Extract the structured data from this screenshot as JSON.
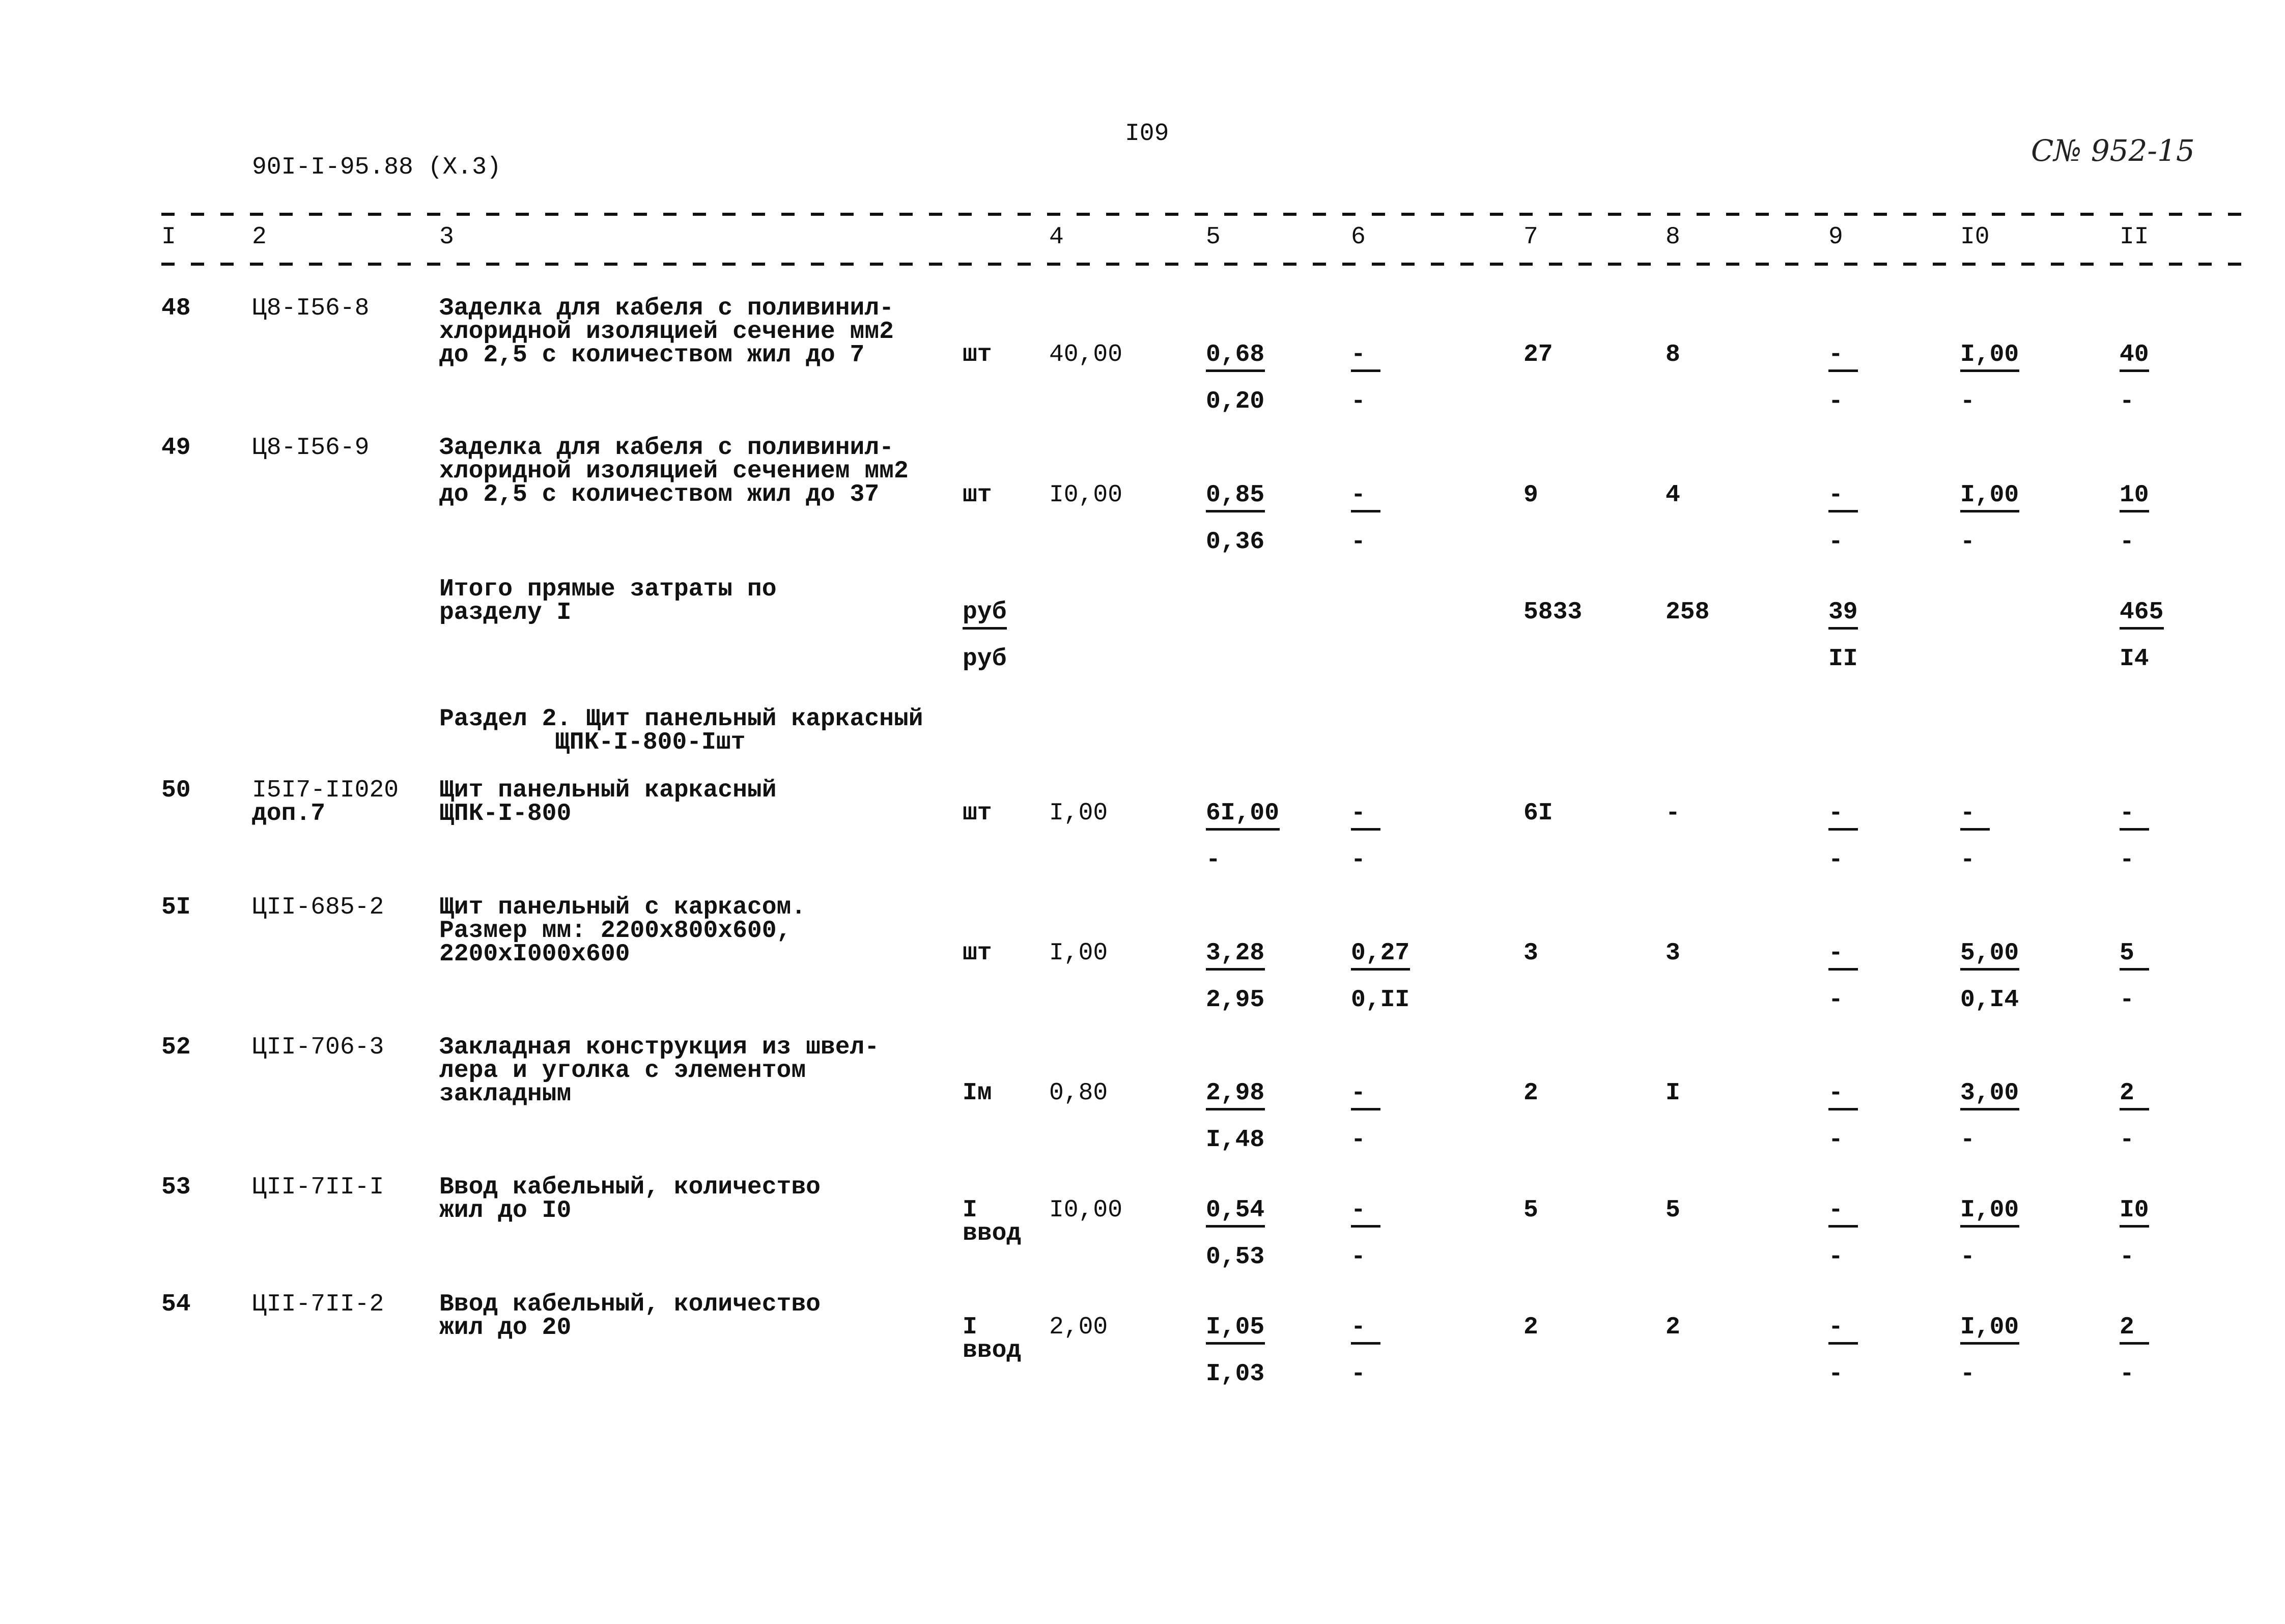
{
  "header": {
    "doc_code": "90I-I-95.88 (X.3)",
    "page_number": "I09",
    "handwritten_mark": "С№ 952-15"
  },
  "columns": [
    "I",
    "2",
    "3",
    "4",
    "5",
    "6",
    "7",
    "8",
    "9",
    "I0",
    "II"
  ],
  "rows": [
    {
      "num": "48",
      "code": [
        "Ц8-I56-8"
      ],
      "desc": [
        "Заделка для кабеля с поливинил-",
        "хлоридной изоляцией сечение мм2",
        "до 2,5 с количеством жил до 7"
      ],
      "unit": [
        "шт"
      ],
      "qty": "40,00",
      "c5": [
        "0,68",
        "0,20"
      ],
      "c6": [
        "-",
        "-"
      ],
      "c7": "27",
      "c8": "8",
      "c9": [
        "-",
        "-"
      ],
      "c10": [
        "I,00",
        "-"
      ],
      "c11": [
        "40",
        "-"
      ]
    },
    {
      "num": "49",
      "code": [
        "Ц8-I56-9"
      ],
      "desc": [
        "Заделка для кабеля с поливинил-",
        "хлоридной изоляцией сечением мм2",
        "до 2,5 с количеством жил до 37"
      ],
      "unit": [
        "шт"
      ],
      "qty": "I0,00",
      "c5": [
        "0,85",
        "0,36"
      ],
      "c6": [
        "-",
        "-"
      ],
      "c7": "9",
      "c8": "4",
      "c9": [
        "-",
        "-"
      ],
      "c10": [
        "I,00",
        "-"
      ],
      "c11": [
        "10",
        "-"
      ]
    },
    {
      "num": "",
      "code": [],
      "desc": [
        "Итого прямые затраты по",
        "разделу I"
      ],
      "unit_fraction": [
        "руб",
        "руб"
      ],
      "qty": "",
      "c5": null,
      "c6": null,
      "c7": "5833",
      "c8": "258",
      "c9": [
        "39",
        "II"
      ],
      "c10": null,
      "c11": [
        "465",
        "I4"
      ]
    },
    {
      "section": [
        "Раздел 2. Щит панельный каркасный",
        "ЩПК-I-800-Iшт"
      ]
    },
    {
      "num": "50",
      "code": [
        "I5I7-II020",
        "доп.7"
      ],
      "desc": [
        "Щит панельный каркасный",
        "ЩПК-I-800"
      ],
      "unit": [
        "шт"
      ],
      "qty": "I,00",
      "c5": [
        "6I,00",
        "-"
      ],
      "c6": [
        "-",
        "-"
      ],
      "c7": "6I",
      "c8": "-",
      "c9": [
        "-",
        "-"
      ],
      "c10": [
        "-",
        "-"
      ],
      "c11": [
        "-",
        "-"
      ]
    },
    {
      "num": "5I",
      "code": [
        "ЦII-685-2"
      ],
      "desc": [
        "Щит панельный с каркасом.",
        "Размер мм: 2200x800x600,",
        "2200xI000x600"
      ],
      "unit": [
        "шт"
      ],
      "qty": "I,00",
      "c5": [
        "3,28",
        "2,95"
      ],
      "c6": [
        "0,27",
        "0,II"
      ],
      "c7": "3",
      "c8": "3",
      "c9": [
        "-",
        "-"
      ],
      "c10": [
        "5,00",
        "0,I4"
      ],
      "c11": [
        "5",
        "-"
      ]
    },
    {
      "num": "52",
      "code": [
        "ЦII-706-3"
      ],
      "desc": [
        "Закладная конструкция из швел-",
        "лера и уголка с элементом",
        "закладным"
      ],
      "unit": [
        "Iм"
      ],
      "qty": "0,80",
      "c5": [
        "2,98",
        "I,48"
      ],
      "c6": [
        "-",
        "-"
      ],
      "c7": "2",
      "c8": "I",
      "c9": [
        "-",
        "-"
      ],
      "c10": [
        "3,00",
        "-"
      ],
      "c11": [
        "2",
        "-"
      ]
    },
    {
      "num": "53",
      "code": [
        "ЦII-7II-I"
      ],
      "desc": [
        "Ввод кабельный, количество",
        "жил до I0"
      ],
      "unit": [
        "I",
        "ввод"
      ],
      "qty": "I0,00",
      "c5": [
        "0,54",
        "0,53"
      ],
      "c6": [
        "-",
        "-"
      ],
      "c7": "5",
      "c8": "5",
      "c9": [
        "-",
        "-"
      ],
      "c10": [
        "I,00",
        "-"
      ],
      "c11": [
        "I0",
        "-"
      ]
    },
    {
      "num": "54",
      "code": [
        "ЦII-7II-2"
      ],
      "desc": [
        "Ввод кабельный, количество",
        "жил до 20"
      ],
      "unit": [
        "I",
        "ввод"
      ],
      "qty": "2,00",
      "c5": [
        "I,05",
        "I,03"
      ],
      "c6": [
        "-",
        "-"
      ],
      "c7": "2",
      "c8": "2",
      "c9": [
        "-",
        "-"
      ],
      "c10": [
        "I,00",
        "-"
      ],
      "c11": [
        "2",
        "-"
      ]
    }
  ]
}
